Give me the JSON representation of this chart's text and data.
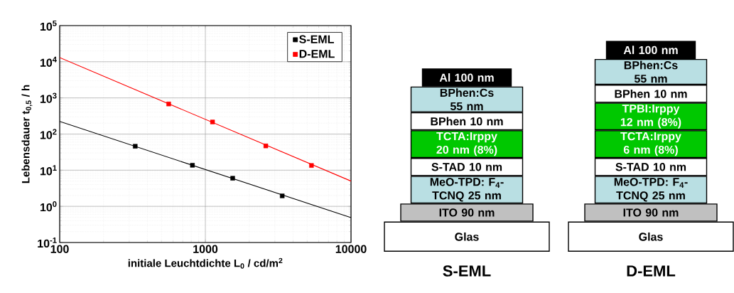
{
  "chart_data": [
    {
      "type": "scatter",
      "xlabel": "initiale Leuchtdichte L$_{0}$ / cd/m$^{2}$",
      "ylabel": "Lebensdauer t$_{0,5}$ / h",
      "log": "xy",
      "grid": true,
      "legend": "top right",
      "marker": "square",
      "xlim": [
        100,
        10000
      ],
      "xticks": [
        100,
        1000,
        10000
      ],
      "ylim": [
        0.1,
        100000
      ],
      "yticks": [
        {
          "value": 0.1,
          "label": "10$^{-1}$"
        },
        {
          "value": 1,
          "label": "10$^{0}$"
        },
        {
          "value": 10,
          "label": "10$^{1}$"
        },
        {
          "value": 100,
          "label": "10$^{2}$"
        },
        {
          "value": 1000,
          "label": "10$^{3}$"
        },
        {
          "value": 10000,
          "label": "10$^{4}$"
        },
        {
          "value": 100000,
          "label": "10$^{5}$"
        }
      ],
      "series": [
        {
          "name": "S-EML",
          "type": "scatter",
          "color": "#000000",
          "x": [
            330,
            815,
            1540,
            3370
          ],
          "values": [
            46,
            13.7,
            6.0,
            1.95
          ]
        },
        {
          "name": "D-EML",
          "type": "scatter",
          "color": "#ff0000",
          "x": [
            560,
            1120,
            2600,
            5350
          ],
          "values": [
            680,
            216,
            47,
            13.5
          ]
        },
        {
          "type": "line",
          "marker": "none",
          "color": "#000000",
          "x": [
            100,
            10000
          ],
          "values": [
            223,
            0.49
          ]
        },
        {
          "type": "line",
          "marker": "none",
          "color": "#ff0000",
          "x": [
            100,
            10000
          ],
          "values": [
            13000,
            5.0
          ]
        }
      ]
    },
    {
      "type": "other",
      "title": "S-EML",
      "annotations": [
        "Al 100 nm",
        "BPhen:Cs 55 nm",
        "BPhen 10 nm",
        "TCTA:Irppy 20 nm (8%)",
        "S-TAD 10 nm",
        "MeO-TPD: F$_{4}$-TCNQ 25 nm",
        "ITO 90 nm",
        "Glas"
      ],
      "colors": [
        "#000000",
        "#b9dfe3",
        "#ffffff",
        "#00c800",
        "#ffffff",
        "#b9dfe3",
        "#c0c0c0",
        "#ffffff"
      ]
    },
    {
      "type": "other",
      "title": "D-EML",
      "annotations": [
        "Al 100 nm",
        "BPhen:Cs 55 nm",
        "BPhen 10 nm",
        "TPBI:Irppy 12 nm (8%)",
        "TCTA:Irppy 6 nm (8%)",
        "S-TAD 10 nm",
        "MeO-TPD: F$_{4}$-TCNQ 25 nm",
        "ITO 90 nm",
        "Glas"
      ],
      "colors": [
        "#000000",
        "#b9dfe3",
        "#ffffff",
        "#00c800",
        "#00c800",
        "#ffffff",
        "#b9dfe3",
        "#c0c0c0",
        "#ffffff"
      ]
    }
  ]
}
